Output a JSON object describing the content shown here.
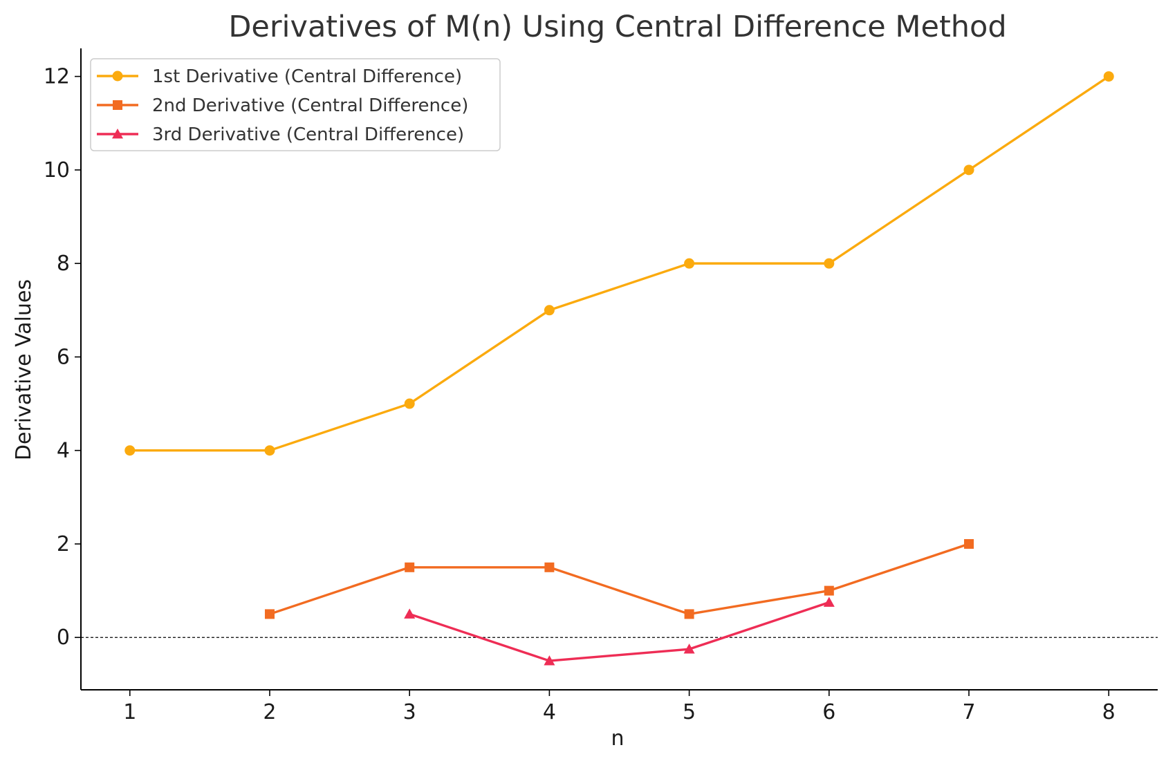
{
  "chart_data": {
    "type": "line",
    "title": "Derivatives of M(n) Using Central Difference Method",
    "xlabel": "n",
    "ylabel": "Derivative Values",
    "xlim": [
      0.65,
      8.35
    ],
    "ylim": [
      -1.12,
      12.6
    ],
    "xticks": [
      1,
      2,
      3,
      4,
      5,
      6,
      7,
      8
    ],
    "yticks": [
      0,
      2,
      4,
      6,
      8,
      10,
      12
    ],
    "grid": false,
    "legend_position": "top-left",
    "reference_line": {
      "y": 0,
      "style": "dashed",
      "color": "#000000"
    },
    "series": [
      {
        "name": "1st Derivative (Central Difference)",
        "color": "#FBAA0E",
        "marker": "circle",
        "x": [
          1,
          2,
          3,
          4,
          5,
          6,
          7,
          8
        ],
        "y": [
          4,
          4,
          5,
          7,
          8,
          8,
          10,
          12
        ]
      },
      {
        "name": "2nd Derivative (Central Difference)",
        "color": "#F26B21",
        "marker": "square",
        "x": [
          2,
          3,
          4,
          5,
          6,
          7
        ],
        "y": [
          0.5,
          1.5,
          1.5,
          0.5,
          1.0,
          2.0
        ]
      },
      {
        "name": "3rd Derivative (Central Difference)",
        "color": "#EE2D55",
        "marker": "triangle",
        "x": [
          3,
          4,
          5,
          6
        ],
        "y": [
          0.5,
          -0.5,
          -0.25,
          0.75
        ]
      }
    ]
  }
}
